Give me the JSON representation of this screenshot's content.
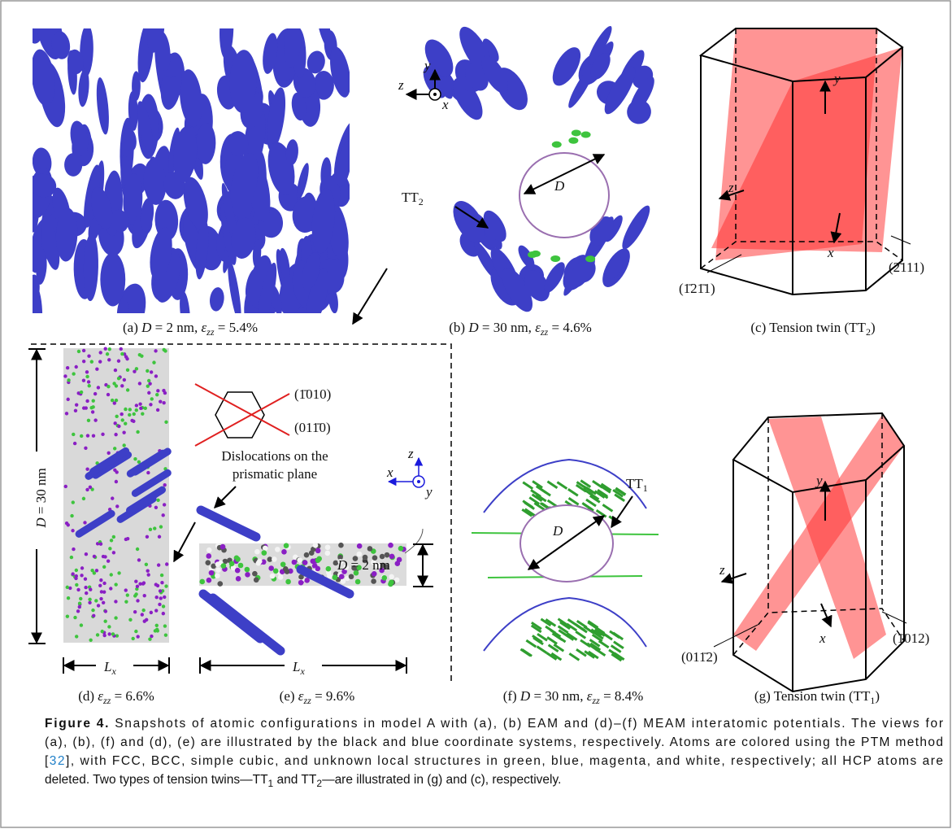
{
  "panels": {
    "a": {
      "caption": [
        "(a) ",
        "D",
        " = 2 nm, ",
        "ε",
        "zz",
        " = 5.4%"
      ]
    },
    "b": {
      "caption": [
        "(b) ",
        "D",
        " = 30 nm, ",
        "ε",
        "zz",
        " = 4.6%"
      ],
      "axes": [
        "y",
        "z",
        "x"
      ],
      "diameter": "D",
      "twin": [
        "TT",
        "2"
      ]
    },
    "c": {
      "caption": [
        "(c) Tension twin (TT",
        "2",
        ")"
      ],
      "axes": [
        "y",
        "z",
        "x"
      ],
      "planes": [
        "(1̄21̄1)",
        "(2̄111)"
      ]
    },
    "d": {
      "caption": [
        "(d) ",
        "ε",
        "zz",
        " = 6.6%"
      ],
      "height": [
        "D",
        " = 30 nm"
      ],
      "width": [
        "L",
        "x"
      ]
    },
    "e": {
      "caption": [
        "(e) ",
        "ε",
        "zz",
        " = 9.6%"
      ],
      "planes": [
        "(1̄010)",
        "(011̄0)"
      ],
      "note": [
        "Dislocations on the",
        "prismatic plane"
      ],
      "axes": [
        "z",
        "x",
        "y"
      ],
      "diameter": [
        "D",
        " = 2 nm"
      ],
      "width": [
        "L",
        "x"
      ]
    },
    "f": {
      "caption": [
        "(f) ",
        "D",
        " = 30 nm, ",
        "ε",
        "zz",
        " = 8.4%"
      ],
      "twin": [
        "TT",
        "1"
      ],
      "diameter": "D"
    },
    "g": {
      "caption": [
        "(g) Tension twin (TT",
        "1",
        ")"
      ],
      "axes": [
        "y",
        "z",
        "x"
      ],
      "planes": [
        "(011̄2)",
        "(1̄012)"
      ]
    }
  },
  "caption": {
    "lines": [
      [
        "Figure 4.",
        " Snapshots of atomic configurations in model A with (a), (b) EAM and (d)–(f) MEAM interatomic potentials. The views for"
      ],
      [
        "(a), (b), (f) and (d), (e) are illustrated by the black and blue coordinate systems, respectively. Atoms are colored using the PTM method"
      ],
      [
        "[",
        "32",
        "], with FCC, BCC, simple cubic, and unknown local structures in green, blue, magenta, and white, respectively; all HCP atoms are"
      ],
      [
        "deleted. Two types of tension twins—TT",
        "1",
        " and TT",
        "2",
        "—are illustrated in (g) and (c), respectively."
      ]
    ]
  }
}
